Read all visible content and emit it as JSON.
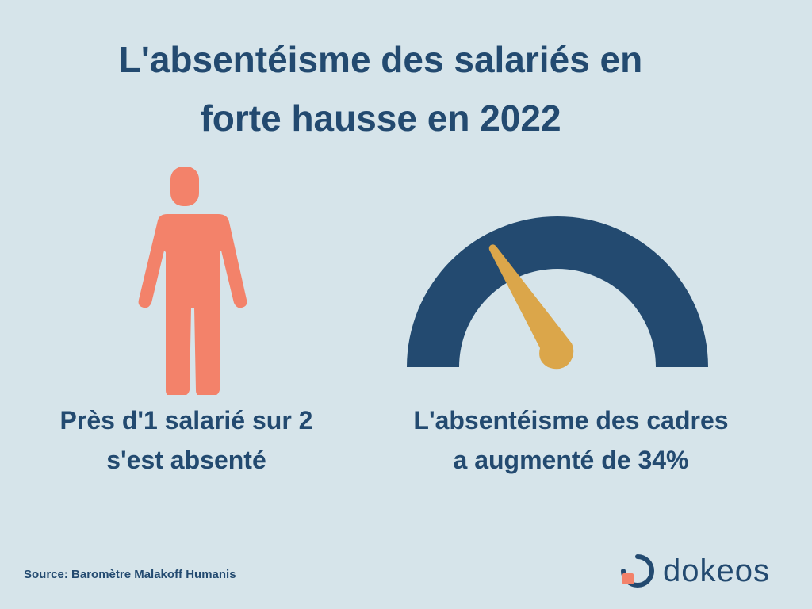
{
  "title": {
    "line1": "L'absentéisme des salariés en",
    "line2": "forte hausse en 2022"
  },
  "stat_left": {
    "icon": "person-icon",
    "line1": "Près d'1 salarié sur 2",
    "line2": "s'est absenté"
  },
  "stat_right": {
    "icon": "gauge-icon",
    "line1": "L'absentéisme des cadres",
    "line2": "a augmenté de 34%"
  },
  "source": "Source: Baromètre Malakoff Humanis",
  "logo": {
    "text": "dokeos",
    "icon": "dokeos-logo-icon"
  },
  "colors": {
    "background": "#d6e4ea",
    "primary": "#234a70",
    "accent": "#f3826a",
    "needle": "#dba64a"
  }
}
